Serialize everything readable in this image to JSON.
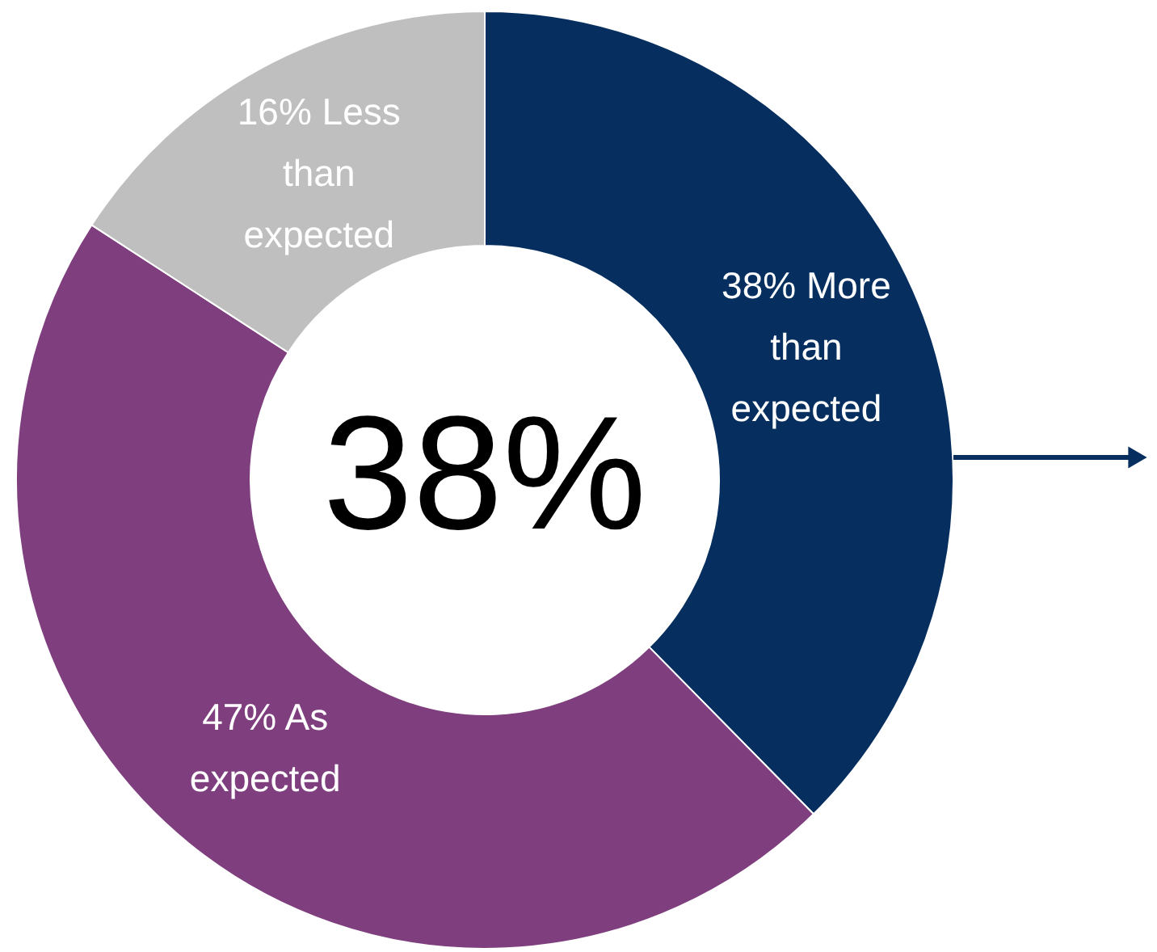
{
  "chart_data": {
    "type": "donut",
    "categories": [
      "38% More than expected",
      "47% As expected",
      "16% Less than expected"
    ],
    "values": [
      38,
      47,
      16
    ],
    "colors": [
      "#062f5f",
      "#7f3f7f",
      "#bfbfbf"
    ],
    "annotations": [
      "38%"
    ]
  }
}
